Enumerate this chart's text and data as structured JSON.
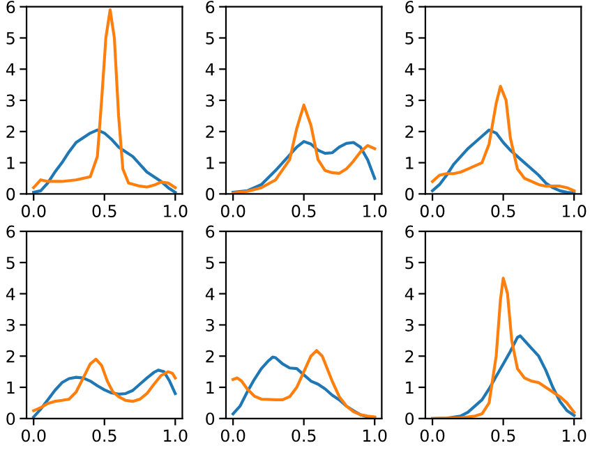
{
  "chart_data": [
    {
      "type": "line",
      "xlim": [
        -0.05,
        1.05
      ],
      "ylim": [
        0,
        6
      ],
      "xticks": [
        {
          "value": 0,
          "label": "0.0"
        },
        {
          "value": 0.5,
          "label": "0.5"
        },
        {
          "value": 1,
          "label": "1.0"
        }
      ],
      "yticks": [
        0,
        1,
        2,
        3,
        4,
        5,
        6
      ],
      "grid": false,
      "series": [
        {
          "color": "#1f77b4",
          "x": [
            0,
            0.05,
            0.1,
            0.15,
            0.2,
            0.25,
            0.3,
            0.35,
            0.4,
            0.45,
            0.5,
            0.55,
            0.6,
            0.65,
            0.7,
            0.75,
            0.8,
            0.85,
            0.9,
            0.95,
            1.0
          ],
          "values": [
            0.05,
            0.1,
            0.35,
            0.7,
            1.0,
            1.35,
            1.65,
            1.8,
            1.95,
            2.05,
            1.95,
            1.75,
            1.5,
            1.35,
            1.2,
            0.95,
            0.7,
            0.55,
            0.4,
            0.2,
            0.05
          ]
        },
        {
          "color": "#ff7f0e",
          "x": [
            0,
            0.05,
            0.1,
            0.2,
            0.3,
            0.4,
            0.45,
            0.48,
            0.51,
            0.54,
            0.57,
            0.6,
            0.63,
            0.67,
            0.75,
            0.8,
            0.85,
            0.9,
            0.95,
            1.0
          ],
          "values": [
            0.2,
            0.45,
            0.4,
            0.4,
            0.45,
            0.55,
            1.2,
            3.0,
            5.0,
            5.9,
            5.0,
            2.5,
            0.8,
            0.35,
            0.25,
            0.22,
            0.28,
            0.38,
            0.35,
            0.2
          ]
        }
      ]
    },
    {
      "type": "line",
      "xlim": [
        -0.05,
        1.05
      ],
      "ylim": [
        0,
        6
      ],
      "xticks": [
        {
          "value": 0,
          "label": "0.0"
        },
        {
          "value": 0.5,
          "label": "0.5"
        },
        {
          "value": 1,
          "label": "1.0"
        }
      ],
      "yticks": [
        0,
        1,
        2,
        3,
        4,
        5,
        6
      ],
      "grid": false,
      "series": [
        {
          "color": "#1f77b4",
          "x": [
            0,
            0.1,
            0.2,
            0.3,
            0.4,
            0.45,
            0.5,
            0.55,
            0.6,
            0.65,
            0.7,
            0.75,
            0.8,
            0.85,
            0.9,
            0.95,
            1.0
          ],
          "values": [
            0.05,
            0.1,
            0.3,
            0.75,
            1.25,
            1.5,
            1.68,
            1.6,
            1.4,
            1.3,
            1.32,
            1.5,
            1.62,
            1.65,
            1.5,
            1.1,
            0.5
          ]
        },
        {
          "color": "#ff7f0e",
          "x": [
            0,
            0.1,
            0.2,
            0.3,
            0.4,
            0.45,
            0.5,
            0.55,
            0.6,
            0.65,
            0.7,
            0.75,
            0.8,
            0.85,
            0.9,
            0.95,
            1.0
          ],
          "values": [
            0.03,
            0.08,
            0.2,
            0.45,
            1.1,
            2.1,
            2.85,
            2.2,
            1.1,
            0.75,
            0.68,
            0.66,
            0.8,
            1.05,
            1.35,
            1.55,
            1.45
          ]
        }
      ]
    },
    {
      "type": "line",
      "xlim": [
        -0.05,
        1.05
      ],
      "ylim": [
        0,
        6
      ],
      "xticks": [
        {
          "value": 0,
          "label": "0.0"
        },
        {
          "value": 0.5,
          "label": "0.5"
        },
        {
          "value": 1,
          "label": "1.0"
        }
      ],
      "yticks": [
        0,
        1,
        2,
        3,
        4,
        5,
        6
      ],
      "grid": false,
      "series": [
        {
          "color": "#1f77b4",
          "x": [
            0,
            0.05,
            0.1,
            0.15,
            0.2,
            0.25,
            0.3,
            0.35,
            0.4,
            0.45,
            0.5,
            0.55,
            0.6,
            0.65,
            0.7,
            0.75,
            0.8,
            0.85,
            0.9,
            0.95,
            1.0
          ],
          "values": [
            0.1,
            0.3,
            0.6,
            0.95,
            1.2,
            1.45,
            1.65,
            1.85,
            2.05,
            1.95,
            1.65,
            1.4,
            1.2,
            1.0,
            0.8,
            0.6,
            0.35,
            0.2,
            0.1,
            0.05,
            0.03
          ]
        },
        {
          "color": "#ff7f0e",
          "x": [
            0,
            0.05,
            0.1,
            0.15,
            0.2,
            0.25,
            0.3,
            0.35,
            0.4,
            0.45,
            0.48,
            0.52,
            0.55,
            0.6,
            0.65,
            0.7,
            0.75,
            0.8,
            0.9,
            0.95,
            1.0
          ],
          "values": [
            0.4,
            0.6,
            0.65,
            0.65,
            0.7,
            0.8,
            0.9,
            1.0,
            1.6,
            2.9,
            3.45,
            3.0,
            1.8,
            0.8,
            0.5,
            0.4,
            0.3,
            0.25,
            0.25,
            0.2,
            0.1
          ]
        }
      ]
    },
    {
      "type": "line",
      "xlim": [
        -0.05,
        1.05
      ],
      "ylim": [
        0,
        6
      ],
      "xticks": [
        {
          "value": 0,
          "label": "0.0"
        },
        {
          "value": 0.5,
          "label": "0.5"
        },
        {
          "value": 1,
          "label": "1.0"
        }
      ],
      "yticks": [
        0,
        1,
        2,
        3,
        4,
        5,
        6
      ],
      "grid": false,
      "series": [
        {
          "color": "#1f77b4",
          "x": [
            0,
            0.05,
            0.1,
            0.15,
            0.2,
            0.25,
            0.3,
            0.35,
            0.4,
            0.45,
            0.5,
            0.55,
            0.6,
            0.65,
            0.7,
            0.75,
            0.8,
            0.85,
            0.88,
            0.92,
            0.96,
            1.0
          ],
          "values": [
            0.05,
            0.3,
            0.6,
            0.9,
            1.15,
            1.28,
            1.32,
            1.3,
            1.2,
            1.05,
            0.92,
            0.82,
            0.78,
            0.8,
            0.9,
            1.1,
            1.3,
            1.48,
            1.55,
            1.5,
            1.2,
            0.8
          ]
        },
        {
          "color": "#ff7f0e",
          "x": [
            0,
            0.05,
            0.1,
            0.15,
            0.2,
            0.25,
            0.3,
            0.35,
            0.4,
            0.44,
            0.48,
            0.52,
            0.56,
            0.6,
            0.65,
            0.7,
            0.75,
            0.8,
            0.85,
            0.9,
            0.95,
            0.98,
            1.0
          ],
          "values": [
            0.25,
            0.35,
            0.48,
            0.55,
            0.58,
            0.62,
            0.85,
            1.3,
            1.75,
            1.9,
            1.7,
            1.2,
            0.85,
            0.7,
            0.58,
            0.55,
            0.62,
            0.8,
            1.1,
            1.38,
            1.5,
            1.45,
            1.3
          ]
        }
      ]
    },
    {
      "type": "line",
      "xlim": [
        -0.05,
        1.05
      ],
      "ylim": [
        0,
        6
      ],
      "xticks": [
        {
          "value": 0,
          "label": "0.0"
        },
        {
          "value": 0.5,
          "label": "0.5"
        },
        {
          "value": 1,
          "label": "1.0"
        }
      ],
      "yticks": [
        0,
        1,
        2,
        3,
        4,
        5,
        6
      ],
      "grid": false,
      "series": [
        {
          "color": "#1f77b4",
          "x": [
            0,
            0.05,
            0.1,
            0.15,
            0.2,
            0.25,
            0.28,
            0.3,
            0.35,
            0.4,
            0.45,
            0.5,
            0.55,
            0.6,
            0.65,
            0.7,
            0.75,
            0.8,
            0.85,
            0.9,
            0.95,
            1.0
          ],
          "values": [
            0.15,
            0.4,
            0.85,
            1.25,
            1.6,
            1.85,
            1.97,
            1.95,
            1.75,
            1.62,
            1.6,
            1.4,
            1.2,
            1.1,
            0.95,
            0.75,
            0.6,
            0.4,
            0.25,
            0.12,
            0.05,
            0.03
          ]
        },
        {
          "color": "#ff7f0e",
          "x": [
            0,
            0.03,
            0.06,
            0.1,
            0.15,
            0.2,
            0.3,
            0.35,
            0.4,
            0.45,
            0.5,
            0.55,
            0.59,
            0.63,
            0.7,
            0.75,
            0.8,
            0.85,
            0.9,
            0.95,
            1.0
          ],
          "values": [
            1.25,
            1.3,
            1.2,
            0.95,
            0.72,
            0.62,
            0.6,
            0.6,
            0.7,
            1.0,
            1.5,
            2.0,
            2.18,
            2.0,
            1.2,
            0.7,
            0.4,
            0.22,
            0.12,
            0.08,
            0.05
          ]
        }
      ]
    },
    {
      "type": "line",
      "xlim": [
        -0.05,
        1.05
      ],
      "ylim": [
        0,
        6
      ],
      "xticks": [
        {
          "value": 0,
          "label": "0.0"
        },
        {
          "value": 0.5,
          "label": "0.5"
        },
        {
          "value": 1,
          "label": "1.0"
        }
      ],
      "yticks": [
        0,
        1,
        2,
        3,
        4,
        5,
        6
      ],
      "grid": false,
      "series": [
        {
          "color": "#1f77b4",
          "x": [
            0,
            0.1,
            0.2,
            0.25,
            0.3,
            0.35,
            0.4,
            0.45,
            0.5,
            0.55,
            0.6,
            0.62,
            0.65,
            0.7,
            0.75,
            0.8,
            0.85,
            0.9,
            0.95,
            1.0
          ],
          "values": [
            0.0,
            0.01,
            0.08,
            0.2,
            0.4,
            0.6,
            0.95,
            1.35,
            1.75,
            2.15,
            2.6,
            2.65,
            2.5,
            2.25,
            2.0,
            1.55,
            1.0,
            0.55,
            0.25,
            0.1
          ]
        },
        {
          "color": "#ff7f0e",
          "x": [
            0,
            0.2,
            0.3,
            0.35,
            0.4,
            0.45,
            0.48,
            0.5,
            0.53,
            0.56,
            0.6,
            0.65,
            0.7,
            0.75,
            0.8,
            0.85,
            0.9,
            0.95,
            1.0
          ],
          "values": [
            0.0,
            0.02,
            0.08,
            0.15,
            0.5,
            2.0,
            3.8,
            4.5,
            4.0,
            2.5,
            1.6,
            1.3,
            1.2,
            1.15,
            1.0,
            0.85,
            0.7,
            0.5,
            0.2
          ]
        }
      ]
    }
  ]
}
